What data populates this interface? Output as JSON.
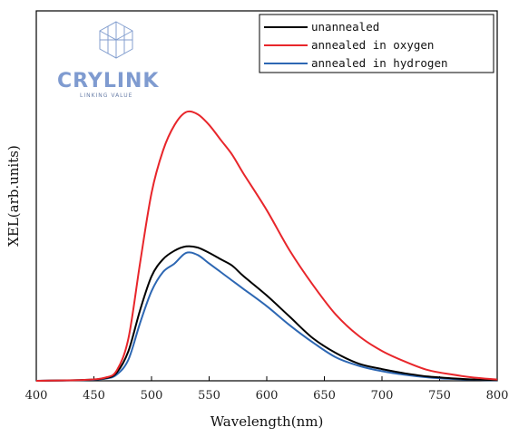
{
  "logo": {
    "name": "CRYLINK",
    "tagline": "LINKING VALUE"
  },
  "chart_data": {
    "type": "line",
    "xlabel": "Wavelength(nm)",
    "ylabel": "XEL(arb.units)",
    "xlim": [
      400,
      800
    ],
    "ylim": [
      0,
      1.25
    ],
    "x_ticks": [
      400,
      450,
      500,
      550,
      600,
      650,
      700,
      750,
      800
    ],
    "y_ticks_shown": false,
    "grid": false,
    "legend_position": "top-right",
    "x": [
      400,
      440,
      460,
      470,
      480,
      490,
      500,
      510,
      520,
      530,
      540,
      550,
      560,
      570,
      580,
      600,
      620,
      640,
      660,
      680,
      700,
      720,
      740,
      760,
      780,
      800
    ],
    "series": [
      {
        "name": "unannealed",
        "color": "#000000",
        "values": [
          0.0,
          0.004,
          0.012,
          0.04,
          0.14,
          0.33,
          0.49,
          0.57,
          0.61,
          0.63,
          0.625,
          0.6,
          0.57,
          0.54,
          0.49,
          0.4,
          0.3,
          0.2,
          0.13,
          0.08,
          0.055,
          0.035,
          0.02,
          0.012,
          0.006,
          0.003
        ]
      },
      {
        "name": "annealed in oxygen",
        "color": "#e8262b",
        "values": [
          0.0,
          0.004,
          0.015,
          0.05,
          0.2,
          0.55,
          0.88,
          1.08,
          1.2,
          1.26,
          1.25,
          1.2,
          1.13,
          1.06,
          0.97,
          0.8,
          0.61,
          0.45,
          0.31,
          0.21,
          0.14,
          0.09,
          0.05,
          0.03,
          0.015,
          0.006
        ]
      },
      {
        "name": "annealed in hydrogen",
        "color": "#2d67b3",
        "values": [
          0.0,
          0.003,
          0.01,
          0.03,
          0.1,
          0.27,
          0.42,
          0.51,
          0.55,
          0.6,
          0.59,
          0.55,
          0.51,
          0.47,
          0.43,
          0.35,
          0.26,
          0.18,
          0.11,
          0.07,
          0.045,
          0.028,
          0.016,
          0.009,
          0.005,
          0.002
        ]
      }
    ]
  }
}
